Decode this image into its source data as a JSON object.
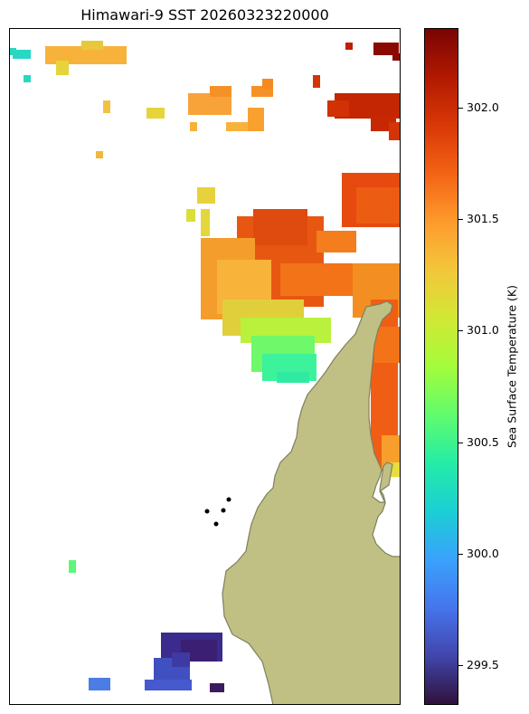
{
  "title": "Himawari-9 SST 20260323220000",
  "colorbar": {
    "label": "Sea Surface Temperature (K)",
    "vmin": 299.3,
    "vmax": 302.35,
    "colormap": "turbo",
    "ticks": [
      "299.5",
      "300.0",
      "300.5",
      "301.0",
      "301.5",
      "302.0"
    ]
  },
  "colors": {
    "land": "#c0c084",
    "coastline": "#7f7f5e",
    "frame": "#000000",
    "markers": "#000000"
  }
}
